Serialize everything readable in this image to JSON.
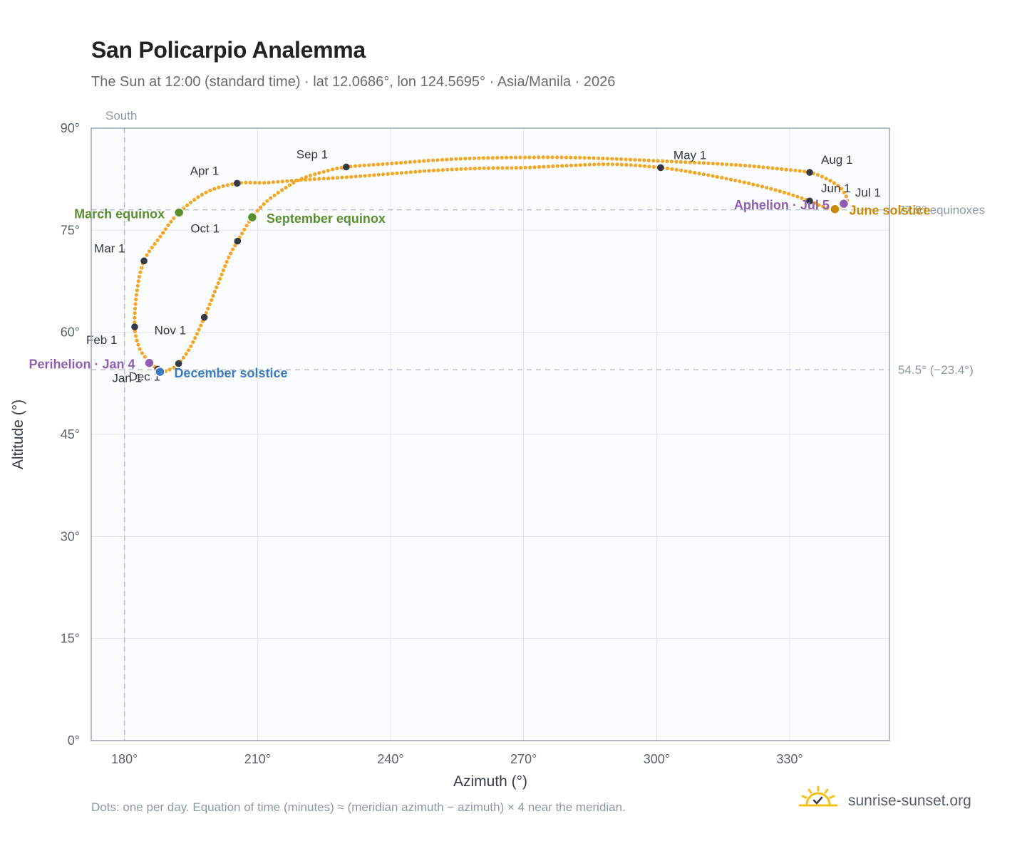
{
  "header": {
    "title": "San Policarpio Analemma",
    "subtitle": "The Sun at 12:00 (standard time) · lat 12.0686°, lon 124.5695° · Asia/Manila · 2026"
  },
  "footer": {
    "note": "Dots: one per day. Equation of time (minutes) ≈ (meridian azimuth − azimuth) × 4 near the meridian.",
    "brand": "sunrise-sunset.org"
  },
  "colors": {
    "path": "#f5a623",
    "month": "#333a45",
    "equinox": "#5b8f2e",
    "june_solstice": "#c98a0b",
    "december_solstice": "#3b7bbf",
    "apsis": "#8e5fb0",
    "reference": "#b8c0cc",
    "plot_bg": "#fafcfe",
    "frame": "#9aa4b2"
  },
  "chart_data": {
    "type": "scatter",
    "xlabel": "Azimuth (°)",
    "ylabel": "Altitude (°)",
    "xlim": [
      172.5,
      352.5
    ],
    "ylim": [
      0,
      90
    ],
    "x_ticks": [
      {
        "value": 180,
        "label": "180°"
      },
      {
        "value": 210,
        "label": "210°"
      },
      {
        "value": 240,
        "label": "240°"
      },
      {
        "value": 270,
        "label": "270°"
      },
      {
        "value": 300,
        "label": "300°"
      },
      {
        "value": 330,
        "label": "330°"
      }
    ],
    "y_ticks": [
      {
        "value": 0,
        "label": "0°"
      },
      {
        "value": 15,
        "label": "15°"
      },
      {
        "value": 30,
        "label": "30°"
      },
      {
        "value": 45,
        "label": "45°"
      },
      {
        "value": 60,
        "label": "60°"
      },
      {
        "value": 75,
        "label": "75°"
      },
      {
        "value": 90,
        "label": "90°"
      }
    ],
    "grid": true,
    "meridian": {
      "azimuth": 180,
      "label": "South"
    },
    "reference_lines": [
      {
        "altitude": 78,
        "label": "77.9° equinoxes"
      },
      {
        "altitude": 54.5,
        "label": "54.5° (−23.4°)"
      }
    ],
    "path_anchors": [
      [
        186.0,
        55.5
      ],
      [
        188.0,
        54.2
      ],
      [
        190.1,
        54.5
      ],
      [
        192.2,
        55.4
      ],
      [
        195.0,
        58.0
      ],
      [
        198.0,
        62.2
      ],
      [
        201.0,
        67.0
      ],
      [
        203.5,
        71.0
      ],
      [
        205.5,
        73.4
      ],
      [
        208.8,
        76.9
      ],
      [
        212.0,
        79.2
      ],
      [
        216.0,
        81.1
      ],
      [
        220.0,
        82.6
      ],
      [
        225.0,
        83.6
      ],
      [
        230.0,
        84.3
      ],
      [
        240.0,
        84.8
      ],
      [
        250.0,
        85.3
      ],
      [
        260.0,
        85.6
      ],
      [
        270.0,
        85.7
      ],
      [
        280.0,
        85.7
      ],
      [
        290.0,
        85.5
      ],
      [
        300.0,
        85.2
      ],
      [
        310.0,
        84.9
      ],
      [
        320.0,
        84.5
      ],
      [
        328.0,
        84.0
      ],
      [
        334.5,
        83.5
      ],
      [
        338.5,
        82.5
      ],
      [
        341.5,
        81.2
      ],
      [
        343.0,
        79.5
      ],
      [
        342.0,
        78.7
      ],
      [
        340.2,
        78.1
      ],
      [
        337.0,
        78.6
      ],
      [
        334.5,
        79.3
      ],
      [
        328.0,
        80.7
      ],
      [
        320.0,
        82.0
      ],
      [
        310.0,
        83.3
      ],
      [
        300.9,
        84.2
      ],
      [
        290.0,
        84.7
      ],
      [
        280.0,
        84.5
      ],
      [
        270.0,
        84.2
      ],
      [
        260.0,
        84.1
      ],
      [
        250.0,
        83.8
      ],
      [
        240.0,
        83.3
      ],
      [
        230.0,
        82.8
      ],
      [
        220.0,
        82.4
      ],
      [
        212.0,
        82.0
      ],
      [
        205.4,
        81.9
      ],
      [
        198.5,
        80.6
      ],
      [
        192.3,
        77.6
      ],
      [
        188.0,
        74.0
      ],
      [
        184.4,
        70.5
      ],
      [
        182.8,
        66.0
      ],
      [
        182.3,
        60.8
      ],
      [
        183.5,
        57.5
      ],
      [
        185.6,
        55.7
      ]
    ],
    "month_markers": [
      {
        "label": "Jan 1",
        "az": 187.5,
        "alt": 54.6,
        "dx": -64,
        "dy": 18
      },
      {
        "label": "Feb 1",
        "az": 182.3,
        "alt": 60.8,
        "dx": -68,
        "dy": 24
      },
      {
        "label": "Mar 1",
        "az": 184.4,
        "alt": 70.5,
        "dx": -70,
        "dy": -12
      },
      {
        "label": "Apr 1",
        "az": 205.4,
        "alt": 81.9,
        "dx": -66,
        "dy": -12
      },
      {
        "label": "May 1",
        "az": 300.9,
        "alt": 84.2,
        "dx": 18,
        "dy": -12
      },
      {
        "label": "Jun 1",
        "az": 334.5,
        "alt": 79.3,
        "dx": 16,
        "dy": -12
      },
      {
        "label": "Jul 1",
        "az": 342.2,
        "alt": 78.9,
        "dx": 16,
        "dy": -10
      },
      {
        "label": "Aug 1",
        "az": 334.5,
        "alt": 83.5,
        "dx": 16,
        "dy": -12
      },
      {
        "label": "Sep 1",
        "az": 230.0,
        "alt": 84.3,
        "dx": -70,
        "dy": -12
      },
      {
        "label": "Oct 1",
        "az": 205.5,
        "alt": 73.4,
        "dx": -66,
        "dy": -12
      },
      {
        "label": "Nov 1",
        "az": 198.0,
        "alt": 62.2,
        "dx": -70,
        "dy": 24
      },
      {
        "label": "Dec 1",
        "az": 192.2,
        "alt": 55.4,
        "dx": -70,
        "dy": 24
      }
    ],
    "events": [
      {
        "label": "March equinox",
        "az": 192.3,
        "alt": 77.6,
        "color": "#5b8f2e",
        "anchor": "end",
        "dx": -20,
        "dy": 8
      },
      {
        "label": "September equinox",
        "az": 208.8,
        "alt": 76.9,
        "color": "#5b8f2e",
        "anchor": "start",
        "dx": 20,
        "dy": 8
      },
      {
        "label": "June solstice",
        "az": 340.2,
        "alt": 78.1,
        "color": "#c98a0b",
        "anchor": "start",
        "dx": 20,
        "dy": 8
      },
      {
        "label": "December solstice",
        "az": 188.0,
        "alt": 54.2,
        "color": "#3b7bbf",
        "anchor": "start",
        "dx": 20,
        "dy": 8
      },
      {
        "label": "Perihelion · Jan 4",
        "az": 185.6,
        "alt": 55.5,
        "color": "#8e5fb0",
        "anchor": "end",
        "dx": -20,
        "dy": 8
      },
      {
        "label": "Aphelion · Jul 5",
        "az": 342.2,
        "alt": 78.9,
        "color": "#8e5fb0",
        "anchor": "end",
        "dx": -20,
        "dy": 8
      }
    ]
  }
}
